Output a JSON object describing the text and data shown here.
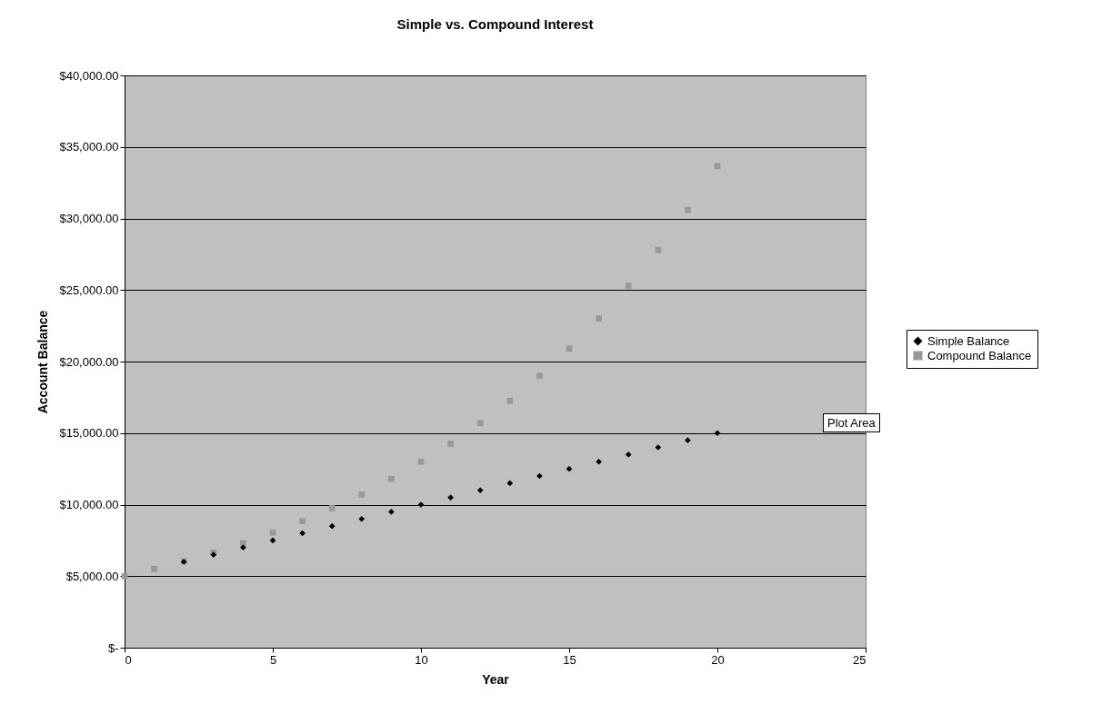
{
  "chart_data": {
    "type": "scatter",
    "title": "Simple vs. Compound Interest",
    "xlabel": "Year",
    "ylabel": "Account Balance",
    "x": [
      0,
      1,
      2,
      3,
      4,
      5,
      6,
      7,
      8,
      9,
      10,
      11,
      12,
      13,
      14,
      15,
      16,
      17,
      18,
      19,
      20
    ],
    "series": [
      {
        "name": "Simple Balance",
        "color": "#000000",
        "marker": "diamond",
        "values": [
          null,
          null,
          6000,
          6500,
          7000,
          7500,
          8000,
          8500,
          9000,
          9500,
          10000,
          10500,
          11000,
          11500,
          12000,
          12500,
          13000,
          13500,
          14000,
          14500,
          15000
        ]
      },
      {
        "name": "Compound Balance",
        "color": "#999999",
        "marker": "square",
        "values": [
          5000,
          5500,
          6050,
          6650,
          7300,
          8050,
          8850,
          9750,
          10700,
          11800,
          13000,
          14250,
          15700,
          17250,
          19000,
          20900,
          23000,
          25300,
          27800,
          30600,
          33650
        ]
      }
    ],
    "xlim": [
      0,
      25
    ],
    "xticks": [
      0,
      5,
      10,
      15,
      20,
      25
    ],
    "ylim": [
      0,
      40000
    ],
    "yticks": [
      {
        "value": 0,
        "label": "$-"
      },
      {
        "value": 5000,
        "label": "$5,000.00"
      },
      {
        "value": 10000,
        "label": "$10,000.00"
      },
      {
        "value": 15000,
        "label": "$15,000.00"
      },
      {
        "value": 20000,
        "label": "$20,000.00"
      },
      {
        "value": 25000,
        "label": "$25,000.00"
      },
      {
        "value": 30000,
        "label": "$30,000.00"
      },
      {
        "value": 35000,
        "label": "$35,000.00"
      },
      {
        "value": 40000,
        "label": "$40,000.00"
      }
    ],
    "grid": "y",
    "legend": "right",
    "annotations": [
      "Plot Area"
    ]
  }
}
